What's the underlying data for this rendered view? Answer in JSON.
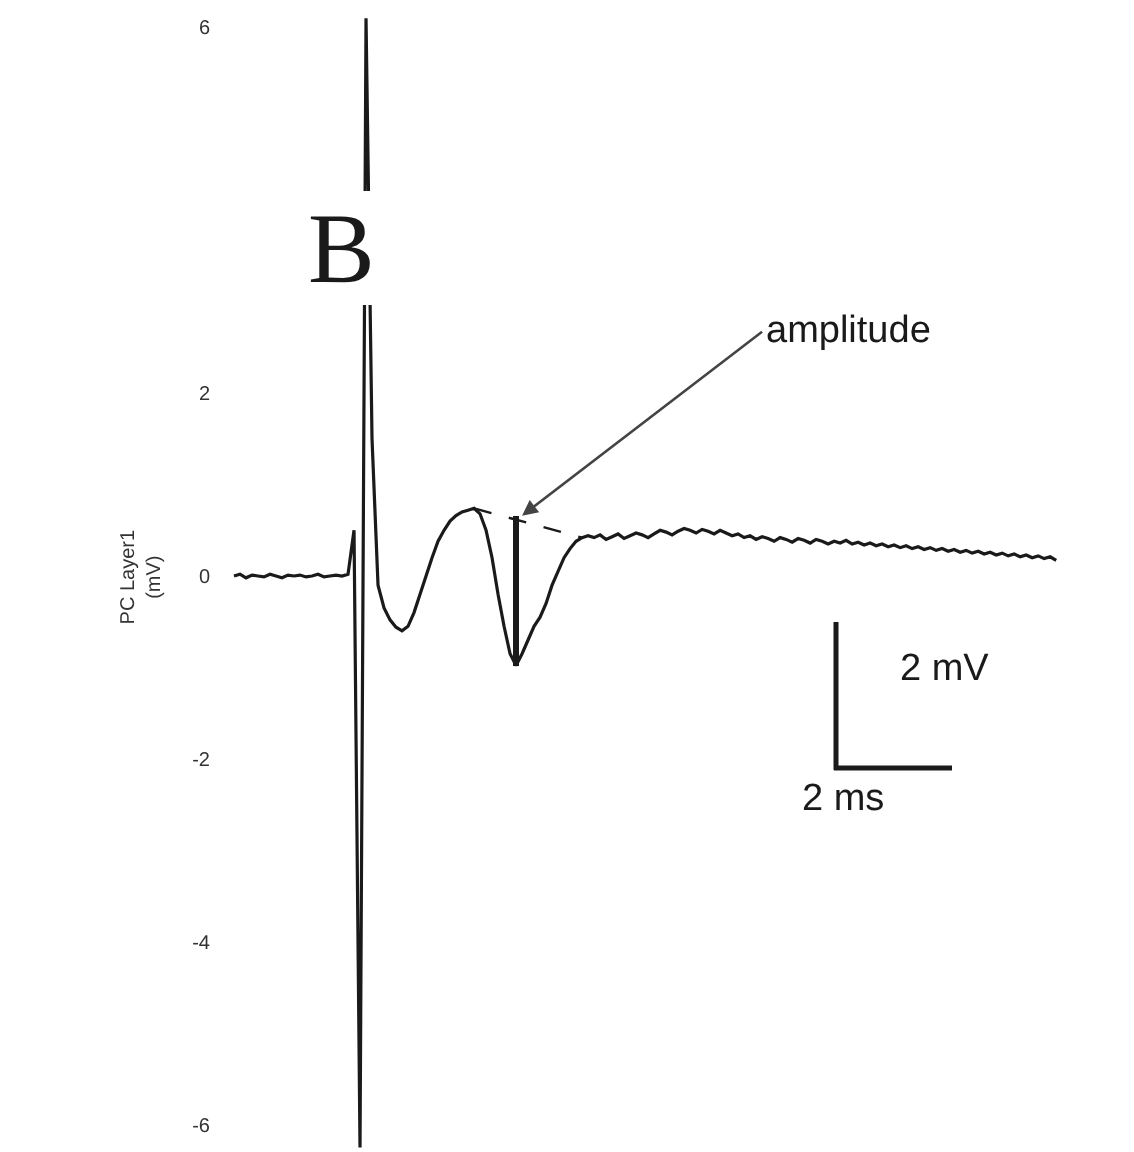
{
  "chart_data": {
    "type": "line",
    "title": "B",
    "ylabel": "PC Layer1\n(mV)",
    "annotations": [
      "amplitude",
      "2 mV",
      "2 ms"
    ],
    "categories": [
      null,
      null,
      null,
      null,
      null,
      null,
      null,
      null,
      null,
      null,
      null,
      null,
      null,
      null,
      null,
      null,
      null,
      null,
      null,
      null,
      null,
      null,
      null,
      null,
      null,
      null,
      null,
      null,
      null,
      null,
      null,
      null,
      null,
      null,
      null,
      null,
      null,
      null,
      null,
      null,
      null,
      null,
      null,
      null,
      null,
      null,
      null,
      null,
      null,
      null,
      null,
      null,
      null,
      null,
      null,
      null,
      null,
      null,
      null,
      null,
      null,
      null,
      null,
      null,
      null,
      null,
      null,
      null,
      null,
      null,
      null,
      null,
      null,
      null,
      null,
      null,
      null,
      null,
      null,
      null,
      null,
      null,
      null,
      null,
      null,
      null,
      null,
      null,
      null,
      null,
      null,
      null,
      null,
      null,
      null,
      null,
      null,
      null,
      null,
      null,
      null,
      null,
      null,
      null,
      null,
      null,
      null,
      null,
      null,
      null,
      null,
      null,
      null,
      null,
      null,
      null,
      null,
      null,
      null,
      null,
      null,
      null,
      null,
      null,
      null,
      null,
      null,
      null,
      null,
      null,
      null,
      null,
      null,
      null,
      null,
      null,
      null,
      null
    ],
    "series": [
      {
        "color": "#1a1a1a",
        "line_style": "solid",
        "values": [
          0,
          0.02,
          -0.02,
          0.01,
          0,
          -0.01,
          0.02,
          0,
          -0.02,
          0.01,
          0,
          0.01,
          -0.01,
          0,
          0.02,
          -0.01,
          0,
          0.01,
          0,
          0.02,
          0.5,
          -6.25,
          6.1,
          1.5,
          -0.1,
          -0.35,
          -0.48,
          -0.56,
          -0.6,
          -0.55,
          -0.4,
          -0.2,
          0,
          0.2,
          0.38,
          0.5,
          0.6,
          0.66,
          0.7,
          0.72,
          0.74,
          0.68,
          0.5,
          0.2,
          -0.2,
          -0.55,
          -0.85,
          -0.98,
          -0.85,
          -0.7,
          -0.55,
          -0.45,
          -0.3,
          -0.1,
          0.05,
          0.2,
          0.3,
          0.38,
          0.42,
          0.44,
          0.42,
          0.45,
          0.4,
          0.43,
          0.46,
          0.41,
          0.44,
          0.47,
          0.45,
          0.42,
          0.46,
          0.5,
          0.48,
          0.45,
          0.49,
          0.52,
          0.5,
          0.47,
          0.51,
          0.49,
          0.46,
          0.5,
          0.47,
          0.44,
          0.46,
          0.42,
          0.44,
          0.4,
          0.43,
          0.41,
          0.38,
          0.42,
          0.4,
          0.37,
          0.41,
          0.39,
          0.36,
          0.4,
          0.38,
          0.35,
          0.38,
          0.36,
          0.39,
          0.35,
          0.37,
          0.34,
          0.36,
          0.33,
          0.35,
          0.32,
          0.34,
          0.31,
          0.33,
          0.3,
          0.32,
          0.29,
          0.31,
          0.28,
          0.3,
          0.27,
          0.29,
          0.26,
          0.28,
          0.25,
          0.27,
          0.24,
          0.26,
          0.23,
          0.25,
          0.22,
          0.24,
          0.21,
          0.23,
          0.2,
          0.22,
          0.19,
          0.21,
          0.17
        ]
      },
      {
        "color": "#1a1a1a",
        "line_style": "dashed",
        "values": [
          null,
          null,
          null,
          null,
          null,
          null,
          null,
          null,
          null,
          null,
          null,
          null,
          null,
          null,
          null,
          null,
          null,
          null,
          null,
          null,
          null,
          null,
          null,
          null,
          null,
          null,
          null,
          null,
          null,
          null,
          null,
          null,
          null,
          null,
          null,
          null,
          null,
          null,
          null,
          null,
          0.74,
          null,
          null,
          null,
          null,
          null,
          null,
          null,
          null,
          null,
          null,
          null,
          null,
          null,
          null,
          null,
          null,
          null,
          0.42,
          null,
          null,
          null,
          null,
          null,
          null,
          null,
          null,
          null,
          null,
          null,
          null,
          null,
          null,
          null,
          null,
          null,
          null,
          null,
          null,
          null,
          null,
          null,
          null,
          null,
          null,
          null,
          null,
          null,
          null,
          null,
          null,
          null,
          null,
          null,
          null,
          null,
          null,
          null,
          null,
          null,
          null,
          null,
          null,
          null,
          null,
          null,
          null,
          null,
          null,
          null,
          null,
          null,
          null,
          null,
          null,
          null,
          null,
          null,
          null,
          null,
          null,
          null,
          null,
          null,
          null,
          null,
          null,
          null,
          null,
          null,
          null,
          null,
          null,
          null,
          null,
          null,
          null,
          null
        ]
      },
      {
        "type": "bar",
        "color": "#1a1a1a",
        "values": [
          null,
          null,
          null,
          null,
          null,
          null,
          null,
          null,
          null,
          null,
          null,
          null,
          null,
          null,
          null,
          null,
          null,
          null,
          null,
          null,
          null,
          null,
          null,
          null,
          null,
          null,
          null,
          null,
          null,
          null,
          null,
          null,
          null,
          null,
          null,
          null,
          null,
          null,
          null,
          null,
          null,
          null,
          null,
          null,
          null,
          null,
          null,
          1.64,
          null,
          null,
          null,
          null,
          null,
          null,
          null,
          null,
          null,
          null,
          null,
          null,
          null,
          null,
          null,
          null,
          null,
          null,
          null,
          null,
          null,
          null,
          null,
          null,
          null,
          null,
          null,
          null,
          null,
          null,
          null,
          null,
          null,
          null,
          null,
          null,
          null,
          null,
          null,
          null,
          null,
          null,
          null,
          null,
          null,
          null,
          null,
          null,
          null,
          null,
          null,
          null,
          null,
          null,
          null,
          null,
          null,
          null,
          null,
          null,
          null,
          null,
          null,
          null,
          null,
          null,
          null,
          null,
          null,
          null,
          null,
          null,
          null,
          null,
          null,
          null,
          null,
          null,
          null,
          null,
          null,
          null,
          null,
          null,
          null,
          null,
          null,
          null,
          null,
          null
        ],
        "base": [
          null,
          null,
          null,
          null,
          null,
          null,
          null,
          null,
          null,
          null,
          null,
          null,
          null,
          null,
          null,
          null,
          null,
          null,
          null,
          null,
          null,
          null,
          null,
          null,
          null,
          null,
          null,
          null,
          null,
          null,
          null,
          null,
          null,
          null,
          null,
          null,
          null,
          null,
          null,
          null,
          null,
          null,
          null,
          null,
          null,
          null,
          null,
          -0.98,
          null,
          null,
          null,
          null,
          null,
          null,
          null,
          null,
          null,
          null,
          null,
          null,
          null,
          null,
          null,
          null,
          null,
          null,
          null,
          null,
          null,
          null,
          null,
          null,
          null,
          null,
          null,
          null,
          null,
          null,
          null,
          null,
          null,
          null,
          null,
          null,
          null,
          null,
          null,
          null,
          null,
          null,
          null,
          null,
          null,
          null,
          null,
          null,
          null,
          null,
          null,
          null,
          null,
          null,
          null,
          null,
          null,
          null,
          null,
          null,
          null,
          null,
          null,
          null,
          null,
          null,
          null,
          null,
          null,
          null,
          null,
          null,
          null,
          null,
          null,
          null,
          null,
          null,
          null,
          null,
          null,
          null,
          null,
          null,
          null,
          null,
          null,
          null,
          null,
          null
        ]
      }
    ],
    "ylim": [
      -6.3,
      6.3
    ],
    "yticks": [
      6,
      2,
      0,
      -2,
      -4,
      -6
    ],
    "tick_labels": "y",
    "grid": false
  }
}
